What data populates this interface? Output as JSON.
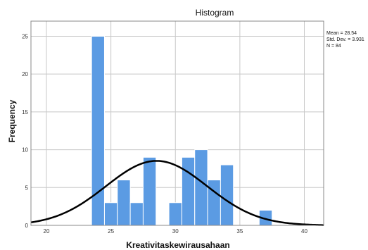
{
  "chart_data": {
    "type": "bar",
    "title": "Histogram",
    "xlabel": "Kreativitaskewirausahaan",
    "ylabel": "Frequency",
    "xlim": [
      18.8,
      41.5
    ],
    "ylim": [
      0,
      27
    ],
    "xticks": [
      20,
      25,
      30,
      35,
      40
    ],
    "yticks": [
      0,
      5,
      10,
      15,
      20,
      25
    ],
    "bin_width": 1,
    "bins": [
      {
        "x": 24,
        "value": 25
      },
      {
        "x": 25,
        "value": 3
      },
      {
        "x": 26,
        "value": 6
      },
      {
        "x": 27,
        "value": 3
      },
      {
        "x": 28,
        "value": 9
      },
      {
        "x": 30,
        "value": 3
      },
      {
        "x": 31,
        "value": 9
      },
      {
        "x": 32,
        "value": 10
      },
      {
        "x": 33,
        "value": 6
      },
      {
        "x": 34,
        "value": 8
      },
      {
        "x": 37,
        "value": 2
      }
    ],
    "normal_curve": {
      "mean": 28.54,
      "std": 3.931,
      "n": 84
    },
    "stats_text": [
      "Mean = 28.54",
      "Std. Dev. = 3.931",
      "N = 84"
    ],
    "grid": true,
    "colors": {
      "bar": "#5b9be3",
      "bar_edge": "#ffffff",
      "curve": "#000000",
      "grid": "#c8c8c8"
    }
  }
}
